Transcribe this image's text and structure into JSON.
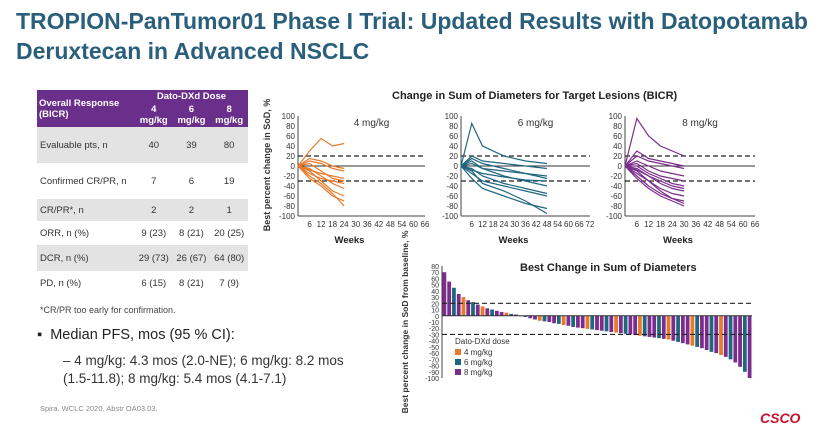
{
  "title": "TROPION-PanTumor01 Phase I Trial: Updated Results with Datopotamab Deruxtecan in Advanced NSCLC",
  "table": {
    "header_label": "Overall Response (BICR)",
    "group_header": "Dato-DXd Dose",
    "dose_headers": [
      "4 mg/kg",
      "6 mg/kg",
      "8 mg/kg"
    ],
    "rows": [
      {
        "label": "Evaluable pts, n",
        "values": [
          "40",
          "39",
          "80"
        ]
      },
      {
        "label": "Confirmed CR/PR, n",
        "values": [
          "7",
          "6",
          "19"
        ]
      },
      {
        "label": "CR/PR*, n",
        "values": [
          "2",
          "2",
          "1"
        ]
      },
      {
        "label": "ORR, n (%)",
        "values": [
          "9 (23)",
          "8 (21)",
          "20 (25)"
        ]
      },
      {
        "label": "DCR, n (%)",
        "values": [
          "29 (73)",
          "26 (67)",
          "64 (80)"
        ]
      },
      {
        "label": "PD, n (%)",
        "values": [
          "6 (15)",
          "8 (21)",
          "7 (9)"
        ]
      }
    ]
  },
  "footnote": "*CR/PR too early for confirmation.",
  "pfs": {
    "bullet": "Median PFS, mos (95 % CI):",
    "detail": "4 mg/kg: 4.3 mos (2.0-NE); 6 mg/kg: 8.2 mos (1.5-11.8); 8 mg/kg: 5.4 mos (4.1-7.1)"
  },
  "citation": "Spira. WCLC 2020. Abstr OA03.03.",
  "logo": "CSCO",
  "colors": {
    "title": "#2a5f7c",
    "header": "#6a2f8a",
    "dose4": "#e87a2c",
    "dose6": "#1f6680",
    "dose8": "#7a2d8c"
  },
  "chart_data": [
    {
      "type": "line",
      "title": "Change in Sum of Diameters for Target Lesions (BICR)",
      "ylabel": "Best percent change in SoD, %",
      "xlabel": "Weeks",
      "ylim": [
        -100,
        100
      ],
      "yticks": [
        100,
        80,
        60,
        40,
        20,
        0,
        -20,
        -40,
        -60,
        -80,
        -100
      ],
      "reference_lines": [
        20,
        -30
      ],
      "panels": [
        {
          "name": "4 mg/kg",
          "color": "#e87a2c",
          "xlim": [
            0,
            66
          ],
          "xtick_labels": [
            "6",
            "12",
            "18",
            "24",
            "30",
            "36",
            "42",
            "48",
            "54",
            "60",
            "66"
          ],
          "x": [
            0,
            6,
            12,
            18,
            24
          ],
          "series": [
            [
              0,
              30,
              55,
              40,
              45
            ],
            [
              0,
              -5,
              -20,
              -35,
              -45
            ],
            [
              0,
              -10,
              -30,
              -50,
              -60
            ],
            [
              0,
              10,
              5,
              -5,
              -10
            ],
            [
              0,
              -20,
              -35,
              -55,
              -80
            ],
            [
              0,
              5,
              -10,
              -25,
              -30
            ],
            [
              0,
              -15,
              -25,
              -30,
              -35
            ],
            [
              0,
              15,
              10,
              0,
              -5
            ],
            [
              0,
              -25,
              -40,
              -60,
              -70
            ],
            [
              0,
              -8,
              -15,
              -20,
              -25
            ]
          ]
        },
        {
          "name": "6 mg/kg",
          "color": "#1f6680",
          "xlim": [
            0,
            72
          ],
          "xtick_labels": [
            "6",
            "12",
            "18",
            "24",
            "30",
            "36",
            "42",
            "48",
            "54",
            "60",
            "66",
            "72"
          ],
          "x": [
            0,
            6,
            12,
            24,
            36,
            48
          ],
          "series": [
            [
              0,
              85,
              40,
              20,
              10,
              5
            ],
            [
              0,
              -5,
              -20,
              -35,
              -45,
              -55
            ],
            [
              0,
              -10,
              -35,
              -50,
              -70,
              -95
            ],
            [
              0,
              20,
              10,
              5,
              0,
              -5
            ],
            [
              0,
              -15,
              -30,
              -40,
              -50,
              -60
            ],
            [
              0,
              5,
              -5,
              -10,
              -15,
              -20
            ],
            [
              0,
              -25,
              -45,
              -60,
              -75,
              -85
            ],
            [
              0,
              10,
              -5,
              -20,
              -30,
              -40
            ],
            [
              0,
              -8,
              -15,
              -22,
              -28,
              -30
            ],
            [
              0,
              15,
              5,
              -5,
              -15,
              -25
            ]
          ]
        },
        {
          "name": "8 mg/kg",
          "color": "#7a2d8c",
          "xlim": [
            0,
            66
          ],
          "xtick_labels": [
            "6",
            "12",
            "18",
            "24",
            "30",
            "36",
            "42",
            "48",
            "54",
            "60",
            "66"
          ],
          "x": [
            0,
            6,
            12,
            18,
            24,
            30
          ],
          "series": [
            [
              0,
              95,
              60,
              40,
              30,
              20
            ],
            [
              0,
              -5,
              -20,
              -35,
              -45,
              -50
            ],
            [
              0,
              -10,
              -30,
              -50,
              -65,
              -75
            ],
            [
              0,
              20,
              10,
              5,
              0,
              -5
            ],
            [
              0,
              -15,
              -30,
              -45,
              -55,
              -60
            ],
            [
              0,
              5,
              -10,
              -20,
              -25,
              -30
            ],
            [
              0,
              -25,
              -45,
              -60,
              -70,
              -80
            ],
            [
              0,
              10,
              0,
              -10,
              -15,
              -20
            ],
            [
              0,
              -8,
              -20,
              -30,
              -40,
              -45
            ],
            [
              0,
              30,
              15,
              10,
              5,
              0
            ],
            [
              0,
              -20,
              -40,
              -55,
              -65,
              -70
            ],
            [
              0,
              0,
              -15,
              -25,
              -35,
              -40
            ]
          ]
        }
      ]
    },
    {
      "type": "bar",
      "title": "Best Change in Sum of Diameters",
      "ylabel": "Best percent change in SoD from baseline, %",
      "ylim": [
        -100,
        80
      ],
      "yticks": [
        80,
        70,
        60,
        50,
        40,
        30,
        20,
        10,
        0,
        -10,
        -20,
        -30,
        -40,
        -50,
        -60,
        -70,
        -80,
        -90,
        -100
      ],
      "reference_lines": [
        20,
        -30
      ],
      "legend_title": "Dato-DXd dose",
      "legend": [
        {
          "name": "4 mg/kg",
          "color": "#e87a2c"
        },
        {
          "name": "6 mg/kg",
          "color": "#1f6680"
        },
        {
          "name": "8 mg/kg",
          "color": "#7a2d8c"
        }
      ],
      "values": [
        70,
        55,
        45,
        35,
        30,
        25,
        22,
        18,
        15,
        12,
        10,
        8,
        6,
        5,
        3,
        2,
        0,
        -2,
        -4,
        -6,
        -8,
        -9,
        -10,
        -12,
        -13,
        -15,
        -16,
        -18,
        -19,
        -20,
        -21,
        -22,
        -23,
        -24,
        -25,
        -26,
        -27,
        -28,
        -29,
        -30,
        -31,
        -32,
        -33,
        -34,
        -35,
        -36,
        -37,
        -38,
        -40,
        -42,
        -44,
        -46,
        -48,
        -50,
        -52,
        -55,
        -58,
        -60,
        -63,
        -66,
        -70,
        -75,
        -82,
        -90,
        -100
      ],
      "dose": [
        8,
        8,
        6,
        8,
        4,
        8,
        6,
        8,
        4,
        8,
        6,
        8,
        8,
        4,
        6,
        8,
        4,
        6,
        8,
        8,
        4,
        6,
        8,
        8,
        6,
        4,
        8,
        6,
        8,
        8,
        4,
        6,
        8,
        8,
        6,
        8,
        4,
        8,
        6,
        8,
        8,
        4,
        6,
        8,
        8,
        6,
        8,
        4,
        8,
        6,
        8,
        8,
        4,
        6,
        8,
        8,
        6,
        8,
        4,
        8,
        6,
        8,
        8,
        6,
        8
      ]
    }
  ]
}
